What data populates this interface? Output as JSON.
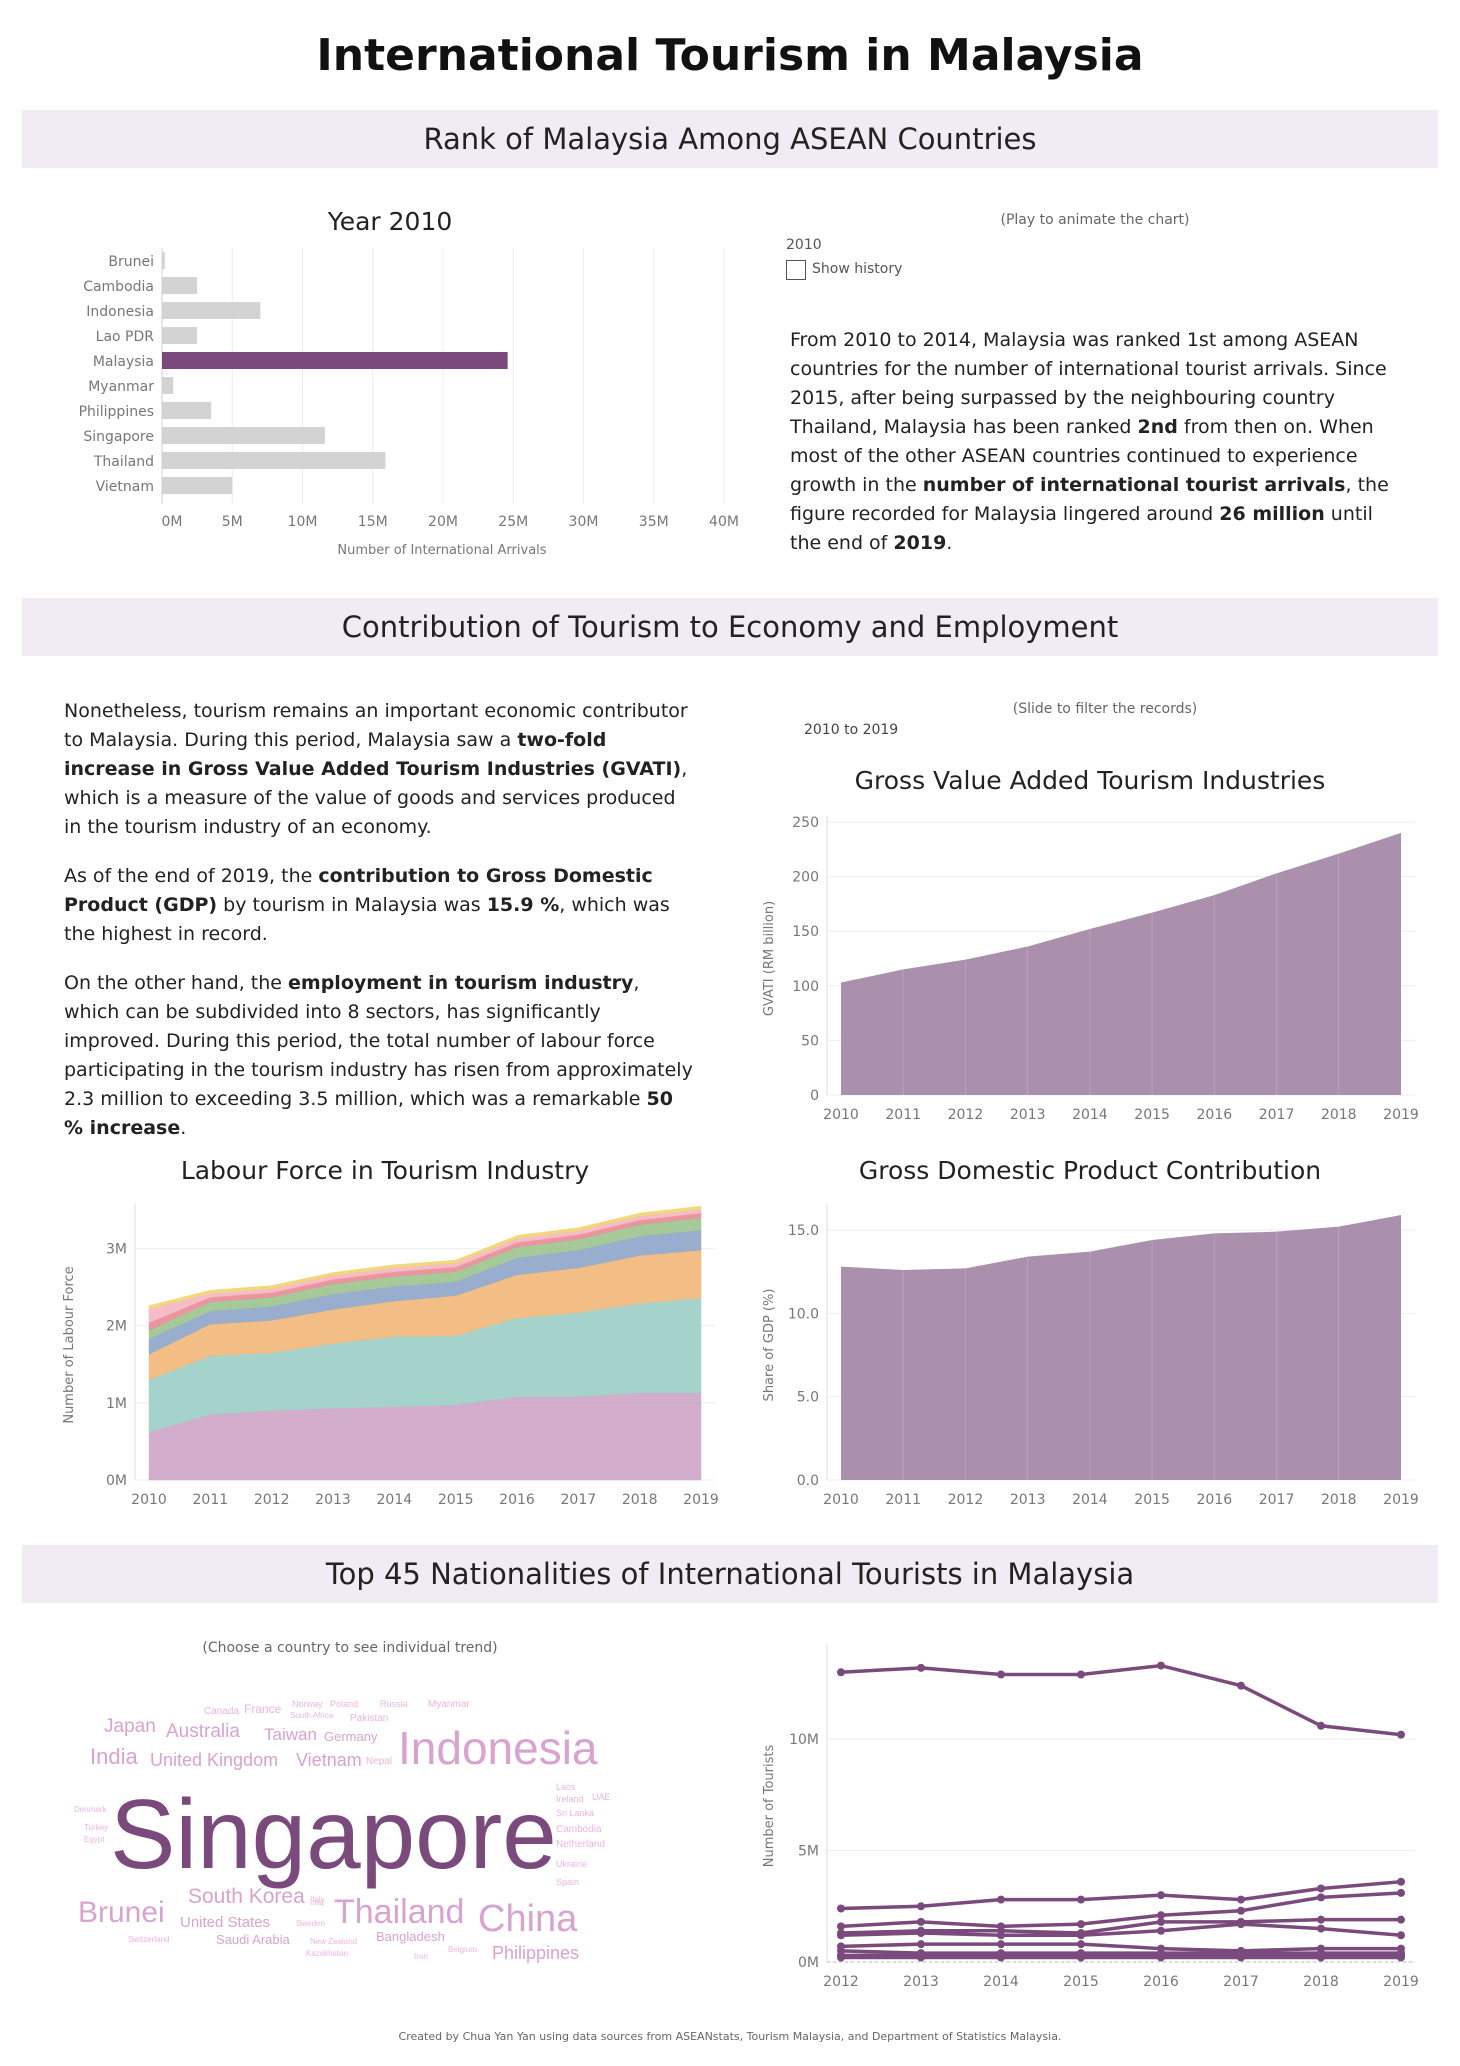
{
  "page_title": "International Tourism in Malaysia",
  "sections": {
    "rank": "Rank of Malaysia Among ASEAN Countries",
    "economy": "Contribution of Tourism to Economy and Employment",
    "nationalities": "Top 45 Nationalities of International Tourists in Malaysia"
  },
  "rank_panel": {
    "play_hint": "(Play to animate the chart)",
    "year_value": "2010",
    "show_history_label": "Show history",
    "paragraph_html": "From 2010 to 2014, Malaysia was ranked 1st among ASEAN countries for the number of international tourist arrivals. Since 2015, after being surpassed by the neighbouring country Thailand, Malaysia has been ranked <b>2nd</b> from then on. When most of the other ASEAN countries continued to experience growth in the <b>number of international tourist arrivals</b>, the figure recorded for Malaysia lingered around <b>26 million</b> until the end of <b>2019</b>."
  },
  "economy_panel": {
    "slider_hint": "(Slide to filter the records)",
    "range_value": "2010 to 2019",
    "paragraphs_html": [
      "Nonetheless, tourism remains an important economic contributor to Malaysia. During this period, Malaysia saw a <b>two-fold increase in Gross Value Added Tourism Industries (GVATI)</b>, which is a measure of the value of goods and services produced in the tourism industry of an economy.",
      "As of the end of 2019, the <b>contribution to Gross Domestic Product (GDP)</b> by tourism in Malaysia was <b>15.9 %</b>, which was the highest in record.",
      "On the other hand, the <b>employment in tourism industry</b>, which can be subdivided into 8 sectors, has significantly improved. During this period, the total number of labour force participating in the tourism industry has risen from approximately 2.3 million to exceeding 3.5 million, which was a remarkable <b>50 % increase</b>."
    ]
  },
  "wordcloud": {
    "hint": "(Choose a country to see individual trend)",
    "words": [
      "Singapore",
      "Indonesia",
      "China",
      "Thailand",
      "Brunei",
      "South Korea",
      "India",
      "United Kingdom",
      "Vietnam",
      "Japan",
      "Australia",
      "Taiwan",
      "Germany",
      "Philippines",
      "United States",
      "Saudi Arabia",
      "Bangladesh",
      "Canada",
      "France",
      "Norway",
      "Poland",
      "South Africa",
      "Pakistan",
      "Russia",
      "Myanmar",
      "Nepal",
      "Laos",
      "Ireland",
      "UAE",
      "Sri Lanka",
      "Cambodia",
      "Netherland",
      "Ukraine",
      "Spain",
      "Italy",
      "Denmark",
      "Turkey",
      "Egypt",
      "Iraq",
      "Sweden",
      "Switzerland",
      "New Zealand",
      "Kazakhstan",
      "Belgium",
      "Iran"
    ]
  },
  "footer": "Created by Chua Yan Yan using data sources from ASEANstats, Tourism Malaysia, and Department of Statistics Malaysia.",
  "colors": {
    "accent": "#7b4a7d",
    "area": "#a58aa8",
    "bar_grey": "#d3d3d3",
    "band": "#f1ebf3"
  },
  "chart_data": [
    {
      "id": "arrivals",
      "type": "bar",
      "title": "Year 2010",
      "xlabel": "Number of International Arrivals",
      "ylabel": "",
      "categories": [
        "Brunei",
        "Cambodia",
        "Indonesia",
        "Lao PDR",
        "Malaysia",
        "Myanmar",
        "Philippines",
        "Singapore",
        "Thailand",
        "Vietnam"
      ],
      "values": [
        0.2,
        2.5,
        7.0,
        2.5,
        24.6,
        0.8,
        3.5,
        11.6,
        15.9,
        5.0
      ],
      "highlight": "Malaysia",
      "xlim": [
        0,
        40
      ],
      "xticks": [
        "0M",
        "5M",
        "10M",
        "15M",
        "20M",
        "25M",
        "30M",
        "35M",
        "40M"
      ],
      "grid": true
    },
    {
      "id": "gvati",
      "type": "area",
      "title": "Gross Value Added Tourism Industries",
      "xlabel": "",
      "ylabel": "GVATI (RM billion)",
      "x": [
        2010,
        2011,
        2012,
        2013,
        2014,
        2015,
        2016,
        2017,
        2018,
        2019
      ],
      "values": [
        103,
        115,
        124,
        136,
        152,
        167,
        183,
        203,
        221,
        240
      ],
      "ylim": [
        0,
        250
      ],
      "yticks": [
        0,
        50,
        100,
        150,
        200,
        250
      ],
      "grid": true
    },
    {
      "id": "labour",
      "type": "area",
      "stacked": true,
      "title": "Labour Force in Tourism Industry",
      "xlabel": "",
      "ylabel": "Number of Labour Force",
      "x": [
        2010,
        2011,
        2012,
        2013,
        2014,
        2015,
        2016,
        2017,
        2018,
        2019
      ],
      "ylim": [
        0,
        3.5
      ],
      "yticks": [
        "0M",
        "1M",
        "2M",
        "3M"
      ],
      "series": [
        {
          "color": "#cfa5c7",
          "values": [
            0.62,
            0.85,
            0.9,
            0.93,
            0.95,
            0.97,
            1.08,
            1.08,
            1.13,
            1.13
          ]
        },
        {
          "color": "#9ccfc7",
          "values": [
            0.68,
            0.76,
            0.75,
            0.84,
            0.91,
            0.9,
            1.02,
            1.09,
            1.16,
            1.23
          ]
        },
        {
          "color": "#f2b878",
          "values": [
            0.33,
            0.41,
            0.42,
            0.44,
            0.46,
            0.52,
            0.56,
            0.58,
            0.62,
            0.62
          ]
        },
        {
          "color": "#8ea6c9",
          "values": [
            0.2,
            0.17,
            0.18,
            0.2,
            0.19,
            0.18,
            0.22,
            0.23,
            0.25,
            0.26
          ]
        },
        {
          "color": "#9dc48f",
          "values": [
            0.11,
            0.12,
            0.12,
            0.13,
            0.13,
            0.13,
            0.14,
            0.14,
            0.15,
            0.16
          ]
        },
        {
          "color": "#e98b95",
          "values": [
            0.1,
            0.06,
            0.06,
            0.06,
            0.06,
            0.06,
            0.06,
            0.06,
            0.06,
            0.06
          ]
        },
        {
          "color": "#f4b6c2",
          "values": [
            0.18,
            0.05,
            0.05,
            0.05,
            0.05,
            0.05,
            0.05,
            0.05,
            0.05,
            0.05
          ]
        },
        {
          "color": "#f0d46e",
          "values": [
            0.04,
            0.04,
            0.04,
            0.04,
            0.04,
            0.04,
            0.04,
            0.04,
            0.04,
            0.04
          ]
        }
      ],
      "grid": true
    },
    {
      "id": "gdp",
      "type": "area",
      "title": "Gross Domestic Product Contribution",
      "xlabel": "",
      "ylabel": "Share of GDP (%)",
      "x": [
        2010,
        2011,
        2012,
        2013,
        2014,
        2015,
        2016,
        2017,
        2018,
        2019
      ],
      "values": [
        12.8,
        12.6,
        12.7,
        13.4,
        13.7,
        14.4,
        14.8,
        14.9,
        15.2,
        15.9
      ],
      "ylim": [
        0,
        16.2
      ],
      "yticks": [
        "0.0",
        "5.0",
        "10.0",
        "15.0"
      ],
      "grid": true
    },
    {
      "id": "nationalities",
      "type": "line",
      "title": "",
      "xlabel": "",
      "ylabel": "Number of Tourists",
      "x": [
        2012,
        2013,
        2014,
        2015,
        2016,
        2017,
        2018,
        2019
      ],
      "ylim": [
        0,
        14
      ],
      "yticks": [
        "0M",
        "5M",
        "10M"
      ],
      "series": [
        {
          "values": [
            13.0,
            13.2,
            12.9,
            12.9,
            13.3,
            12.4,
            10.6,
            10.2
          ]
        },
        {
          "values": [
            2.4,
            2.5,
            2.8,
            2.8,
            3.0,
            2.8,
            3.3,
            3.6
          ]
        },
        {
          "values": [
            1.6,
            1.8,
            1.6,
            1.7,
            2.1,
            2.3,
            2.9,
            3.1
          ]
        },
        {
          "values": [
            1.3,
            1.4,
            1.4,
            1.3,
            1.8,
            1.8,
            1.9,
            1.9
          ]
        },
        {
          "values": [
            1.2,
            1.3,
            1.2,
            1.2,
            1.4,
            1.7,
            1.5,
            1.2
          ]
        },
        {
          "values": [
            0.7,
            0.8,
            0.8,
            0.8,
            0.6,
            0.5,
            0.6,
            0.6
          ]
        },
        {
          "values": [
            0.5,
            0.4,
            0.4,
            0.4,
            0.4,
            0.4,
            0.4,
            0.4
          ]
        },
        {
          "values": [
            0.3,
            0.3,
            0.3,
            0.3,
            0.3,
            0.3,
            0.3,
            0.3
          ]
        },
        {
          "values": [
            0.2,
            0.2,
            0.2,
            0.2,
            0.2,
            0.2,
            0.2,
            0.2
          ]
        }
      ],
      "grid": true
    }
  ]
}
